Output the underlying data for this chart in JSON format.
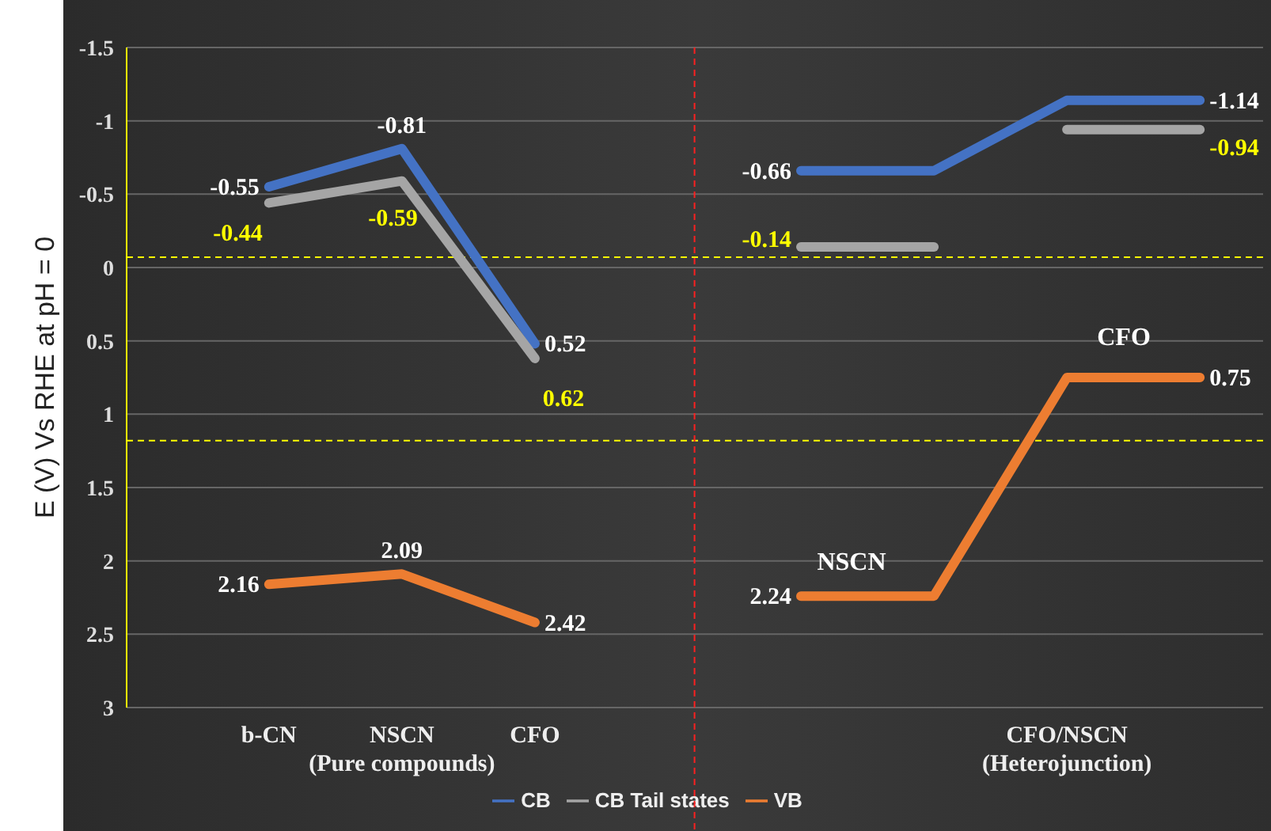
{
  "chart_data": {
    "type": "line",
    "ylabel": "E (V) Vs RHE at pH = 0",
    "categories": [
      "b-CN",
      null,
      "NSCN\n(Pure compounds)",
      null,
      "CFO",
      null,
      null,
      null,
      null,
      null,
      null,
      null,
      "CFO/NSCN\n(Heterojunction)",
      null,
      null
    ],
    "ylim": [
      3,
      -1.5
    ],
    "yticks": [
      -1.5,
      -1,
      -0.5,
      0,
      0.5,
      1,
      1.5,
      2,
      2.5,
      3
    ],
    "series": [
      {
        "name": "CB",
        "color": "#4472c4",
        "values": [
          -0.55,
          null,
          -0.81,
          null,
          0.52,
          null,
          null,
          null,
          null,
          null,
          null,
          null,
          null,
          null,
          null
        ],
        "value_labels": [
          "-0.55",
          null,
          "-0.81",
          null,
          "0.52",
          null,
          null,
          null,
          null,
          null,
          null,
          null,
          null,
          null,
          null
        ]
      },
      {
        "color": "#4472c4",
        "values": [
          null,
          null,
          null,
          null,
          null,
          null,
          null,
          null,
          -0.66,
          null,
          -0.66,
          null,
          -1.14,
          null,
          -1.14
        ],
        "value_labels": [
          null,
          null,
          null,
          null,
          null,
          null,
          null,
          null,
          "-0.66",
          null,
          null,
          null,
          null,
          null,
          "-1.14"
        ]
      },
      {
        "name": "VB",
        "color": "#ed7d31",
        "values": [
          2.16,
          null,
          2.09,
          null,
          2.42,
          null,
          null,
          null,
          null,
          null,
          null,
          null,
          null,
          null,
          null
        ],
        "value_labels": [
          "2.16",
          null,
          "2.09",
          null,
          "2.42",
          null,
          null,
          null,
          null,
          null,
          null,
          null,
          null,
          null,
          null
        ]
      },
      {
        "color": "#ed7d31",
        "values": [
          null,
          null,
          null,
          null,
          null,
          null,
          null,
          null,
          2.24,
          null,
          2.24,
          null,
          0.75,
          null,
          0.75
        ],
        "value_labels": [
          null,
          null,
          null,
          null,
          null,
          null,
          null,
          null,
          "2.24",
          null,
          null,
          null,
          null,
          null,
          "0.75"
        ]
      },
      {
        "name": "CB Tail states",
        "color": "#a5a5a5",
        "values": [
          -0.44,
          null,
          -0.59,
          null,
          0.62,
          null,
          null,
          null,
          null,
          null,
          null,
          null,
          null,
          null,
          null
        ],
        "value_labels": [
          "-0.44",
          null,
          "-0.59",
          null,
          "0.62",
          null,
          null,
          null,
          null,
          null,
          null,
          null,
          null,
          null,
          null
        ]
      },
      {
        "color": "#a5a5a5",
        "values": [
          null,
          null,
          null,
          null,
          null,
          null,
          null,
          null,
          -0.14,
          null,
          -0.14,
          null,
          null,
          null,
          null
        ],
        "value_labels": [
          null,
          null,
          null,
          null,
          null,
          null,
          null,
          null,
          "-0.14",
          null,
          null,
          null,
          null,
          null,
          null
        ]
      },
      {
        "color": "#a5a5a5",
        "values": [
          null,
          null,
          null,
          null,
          null,
          null,
          null,
          null,
          null,
          null,
          null,
          null,
          -0.94,
          null,
          -0.94
        ],
        "value_labels": [
          null,
          null,
          null,
          null,
          null,
          null,
          null,
          null,
          null,
          null,
          null,
          null,
          null,
          null,
          "-0.94"
        ]
      }
    ],
    "ref_lines": [
      {
        "axis": "y",
        "value": -0.07,
        "color": "#ffff00",
        "line_style": "dashed"
      },
      {
        "axis": "y",
        "value": 1.18,
        "color": "#ffff00",
        "line_style": "dashed"
      }
    ],
    "annotations": [
      "NSCN",
      "CFO"
    ],
    "grid": "y",
    "legend": "bottom",
    "line_style": "solid"
  }
}
